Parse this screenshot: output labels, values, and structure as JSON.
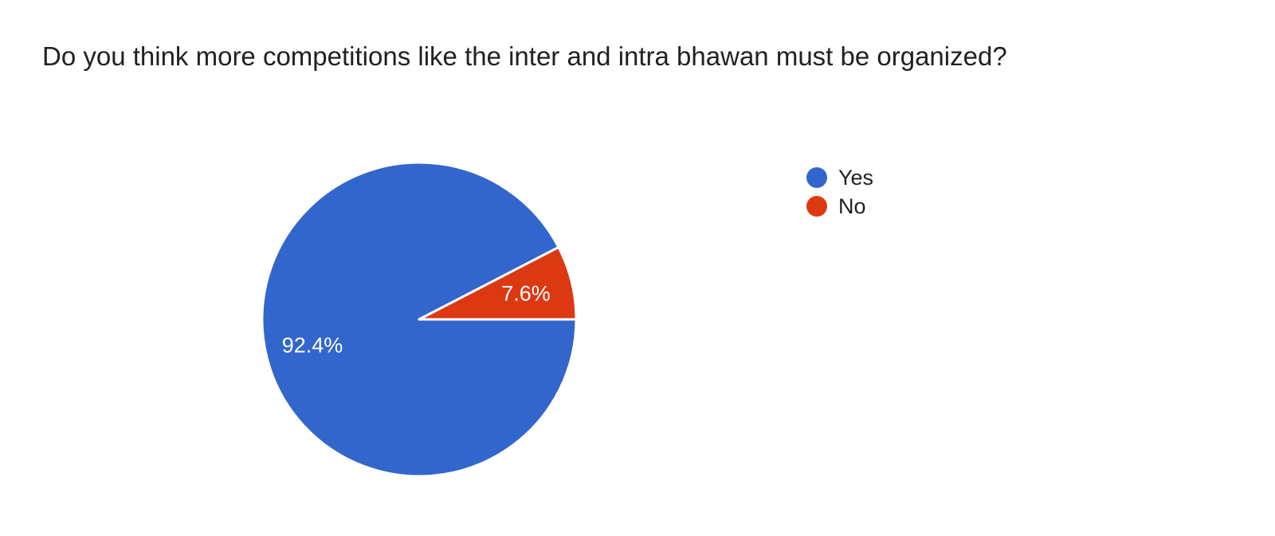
{
  "question": {
    "title": "Do you think more competitions like the inter and intra bhawan must be organized?"
  },
  "chart_data": {
    "type": "pie",
    "title": "Do you think more competitions like the inter and intra bhawan must be organized?",
    "categories": [
      "Yes",
      "No"
    ],
    "values": [
      92.4,
      7.6
    ],
    "slices": [
      {
        "label": "Yes",
        "value": 92.4,
        "display_label": "92.4%",
        "color": "#3366CC"
      },
      {
        "label": "No",
        "value": 7.6,
        "display_label": "7.6%",
        "color": "#DC3912"
      }
    ],
    "start_angle_deg": 0,
    "direction": "clockwise",
    "slice_label_color": "#ffffff",
    "slice_separator_color": "#ffffff",
    "legend_position": "right",
    "legend_text_color": "#212121",
    "title_color": "#202124",
    "background_color": "#ffffff"
  }
}
